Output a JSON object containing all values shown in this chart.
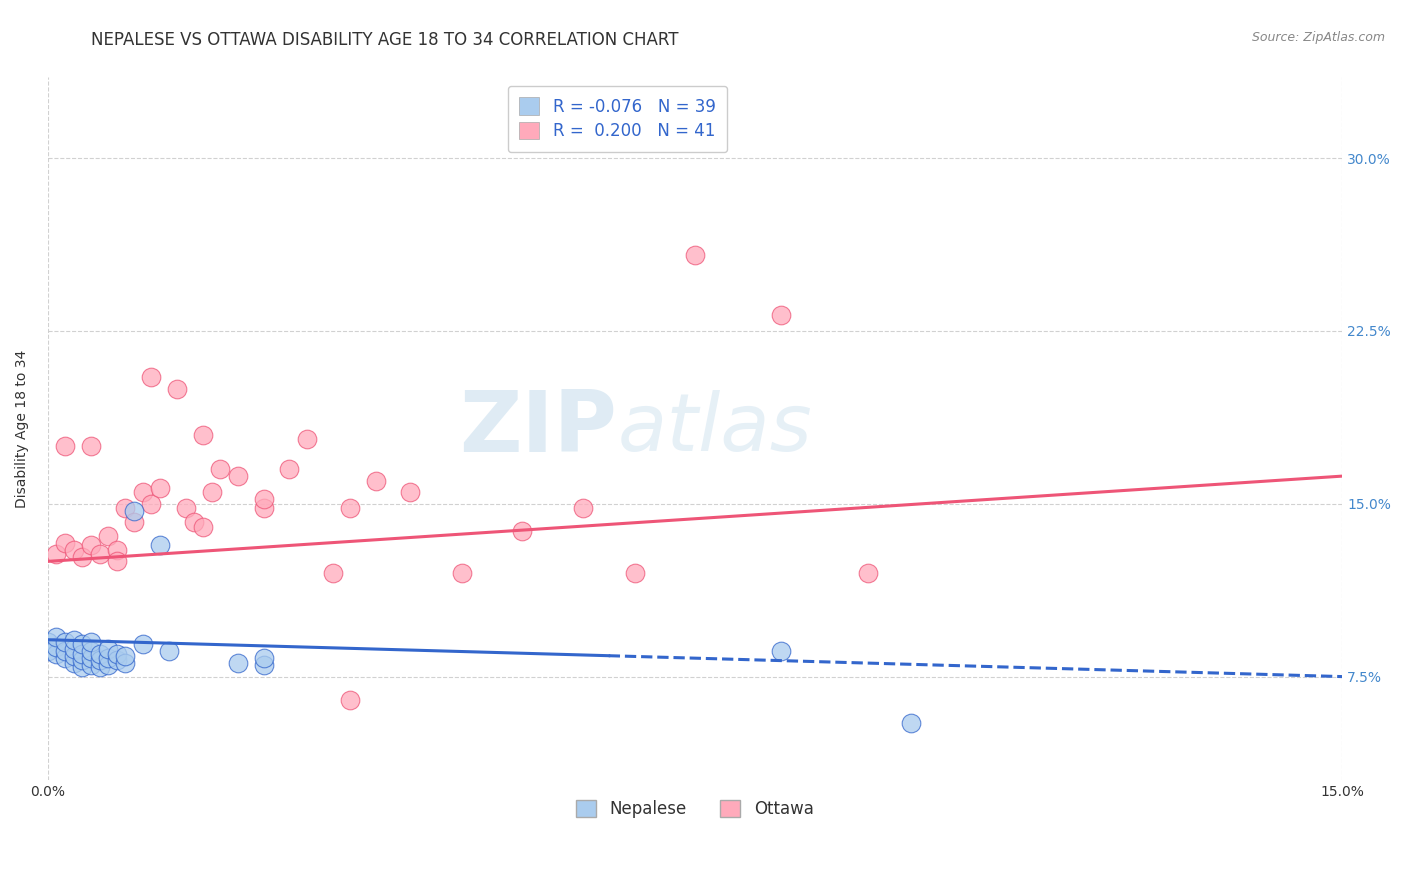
{
  "title": "NEPALESE VS OTTAWA DISABILITY AGE 18 TO 34 CORRELATION CHART",
  "source_text": "Source: ZipAtlas.com",
  "ylabel": "Disability Age 18 to 34",
  "xlim": [
    0.0,
    0.15
  ],
  "ylim": [
    0.03,
    0.335
  ],
  "nepalese_color": "#AACCEE",
  "ottawa_color": "#FFAABB",
  "nepalese_line_color": "#3366CC",
  "ottawa_line_color": "#EE5577",
  "watermark_zip": "ZIP",
  "watermark_atlas": "atlas",
  "r_nepalese": -0.076,
  "r_ottawa": 0.2,
  "n_nepalese": 39,
  "n_ottawa": 41,
  "yticks": [
    0.075,
    0.15,
    0.225,
    0.3
  ],
  "ytick_labels": [
    "7.5%",
    "15.0%",
    "22.5%",
    "30.0%"
  ],
  "xticks": [
    0.0,
    0.15
  ],
  "xtick_labels": [
    "0.0%",
    "15.0%"
  ],
  "grid_color": "#CCCCCC",
  "legend_text_color": "#3366CC",
  "nepalese_x": [
    0.0,
    0.0,
    0.001,
    0.001,
    0.001,
    0.002,
    0.002,
    0.002,
    0.003,
    0.003,
    0.003,
    0.003,
    0.004,
    0.004,
    0.004,
    0.004,
    0.005,
    0.005,
    0.005,
    0.005,
    0.006,
    0.006,
    0.006,
    0.007,
    0.007,
    0.007,
    0.008,
    0.008,
    0.009,
    0.009,
    0.01,
    0.011,
    0.013,
    0.014,
    0.022,
    0.025,
    0.025,
    0.085,
    0.1
  ],
  "nepalese_y": [
    0.09,
    0.086,
    0.085,
    0.088,
    0.092,
    0.083,
    0.086,
    0.09,
    0.081,
    0.084,
    0.087,
    0.091,
    0.079,
    0.082,
    0.085,
    0.089,
    0.08,
    0.083,
    0.086,
    0.09,
    0.079,
    0.082,
    0.085,
    0.08,
    0.083,
    0.087,
    0.082,
    0.085,
    0.081,
    0.084,
    0.147,
    0.089,
    0.132,
    0.086,
    0.081,
    0.08,
    0.083,
    0.086,
    0.055
  ],
  "ottawa_x": [
    0.001,
    0.002,
    0.003,
    0.004,
    0.005,
    0.006,
    0.007,
    0.008,
    0.009,
    0.01,
    0.011,
    0.012,
    0.013,
    0.015,
    0.016,
    0.017,
    0.018,
    0.019,
    0.02,
    0.022,
    0.025,
    0.028,
    0.03,
    0.033,
    0.035,
    0.038,
    0.042,
    0.048,
    0.055,
    0.062,
    0.068,
    0.075,
    0.085,
    0.095,
    0.002,
    0.005,
    0.008,
    0.012,
    0.018,
    0.025,
    0.035
  ],
  "ottawa_y": [
    0.128,
    0.133,
    0.13,
    0.127,
    0.132,
    0.128,
    0.136,
    0.13,
    0.148,
    0.142,
    0.155,
    0.15,
    0.157,
    0.2,
    0.148,
    0.142,
    0.18,
    0.155,
    0.165,
    0.162,
    0.148,
    0.165,
    0.178,
    0.12,
    0.148,
    0.16,
    0.155,
    0.12,
    0.138,
    0.148,
    0.12,
    0.258,
    0.232,
    0.12,
    0.175,
    0.175,
    0.125,
    0.205,
    0.14,
    0.152,
    0.065
  ],
  "title_fontsize": 12,
  "axis_fontsize": 10,
  "tick_fontsize": 10,
  "legend_fontsize": 12,
  "source_fontsize": 9
}
